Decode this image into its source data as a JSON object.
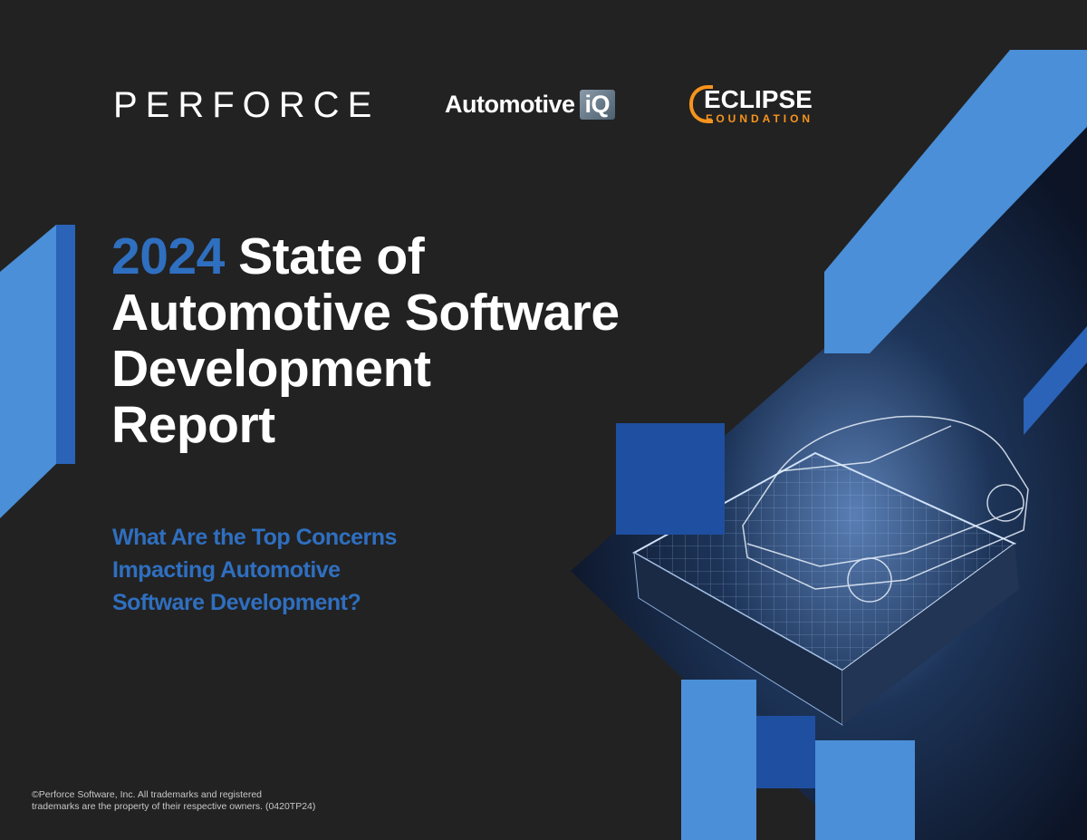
{
  "logos": {
    "perforce": "PERFORCE",
    "automotive_iq": {
      "word": "Automotive",
      "badge": "iQ"
    },
    "eclipse": {
      "word": "ECLIPSE",
      "sub": "FOUNDATION"
    }
  },
  "cover": {
    "year": "2024",
    "title_line1_rest": "State of",
    "title_line2": "Automotive Software",
    "title_line3": "Development",
    "title_line4": "Report",
    "subtitle_line1": "What Are the Top Concerns",
    "subtitle_line2": "Impacting Automotive",
    "subtitle_line3": "Software Development?"
  },
  "footer": {
    "line1": "©Perforce Software, Inc. All trademarks and registered",
    "line2": "trademarks are the property of their respective owners. (0420TP24)"
  },
  "colors": {
    "background": "#222222",
    "accent_blue": "#2f6fc0",
    "light_blue": "#4a8fd8",
    "eclipse_orange": "#f7941d"
  }
}
